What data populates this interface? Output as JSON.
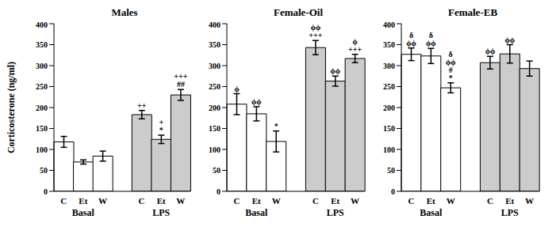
{
  "chart_data": [
    {
      "type": "bar",
      "title": "Males",
      "ylabel": "Corticosterone (ng/ml)",
      "categories": [
        "C",
        "Et",
        "W",
        null,
        "C",
        "Et",
        "W"
      ],
      "values": [
        118,
        70,
        84,
        null,
        183,
        124,
        230
      ],
      "errors": [
        13,
        5,
        12,
        null,
        10,
        10,
        13
      ],
      "annotations": [
        [],
        [],
        [],
        null,
        [
          "++"
        ],
        [
          "+",
          "*"
        ],
        [
          "+++",
          "##"
        ]
      ],
      "colors": [
        "#ffffff",
        "#ffffff",
        "#ffffff",
        null,
        "#cccccc",
        "#cccccc",
        "#cccccc"
      ],
      "groups": [
        "Basal",
        "LPS"
      ],
      "ylim": [
        0,
        400
      ],
      "yticks": [
        0,
        50,
        100,
        150,
        200,
        250,
        300,
        350,
        400
      ]
    },
    {
      "type": "bar",
      "title": "Female-Oil",
      "categories": [
        "C",
        "Et",
        "W",
        null,
        "C",
        "Et",
        "W"
      ],
      "values": [
        208,
        185,
        119,
        null,
        343,
        263,
        317
      ],
      "errors": [
        25,
        17,
        25,
        null,
        17,
        12,
        10
      ],
      "annotations": [
        [
          "ϕ"
        ],
        [
          "ϕϕ"
        ],
        [
          "*"
        ],
        null,
        [
          "ϕϕ",
          "+++"
        ],
        [
          "ϕϕ"
        ],
        [
          "ϕ",
          "+++"
        ]
      ],
      "colors": [
        "#ffffff",
        "#ffffff",
        "#ffffff",
        null,
        "#cccccc",
        "#cccccc",
        "#cccccc"
      ],
      "groups": [
        "Basal",
        "LPS"
      ],
      "ylim": [
        0,
        400
      ],
      "yticks": [
        0,
        50,
        100,
        150,
        200,
        250,
        300,
        350,
        400
      ]
    },
    {
      "type": "bar",
      "title": "Female-EB",
      "categories": [
        "C",
        "Et",
        "W",
        null,
        "C",
        "Et",
        "W"
      ],
      "values": [
        327,
        323,
        247,
        null,
        307,
        328,
        293
      ],
      "errors": [
        15,
        18,
        12,
        null,
        15,
        22,
        18
      ],
      "annotations": [
        [
          "δ",
          "ϕϕ"
        ],
        [
          "δ",
          "ϕϕ"
        ],
        [
          "δ",
          "ϕϕ",
          "#",
          "*"
        ],
        null,
        [
          "ϕϕ"
        ],
        [
          "ϕϕ"
        ],
        []
      ],
      "colors": [
        "#ffffff",
        "#ffffff",
        "#ffffff",
        null,
        "#cccccc",
        "#cccccc",
        "#cccccc"
      ],
      "groups": [
        "Basal",
        "LPS"
      ],
      "ylim": [
        0,
        400
      ],
      "yticks": [
        0,
        50,
        100,
        150,
        200,
        250,
        300,
        350,
        400
      ]
    }
  ]
}
